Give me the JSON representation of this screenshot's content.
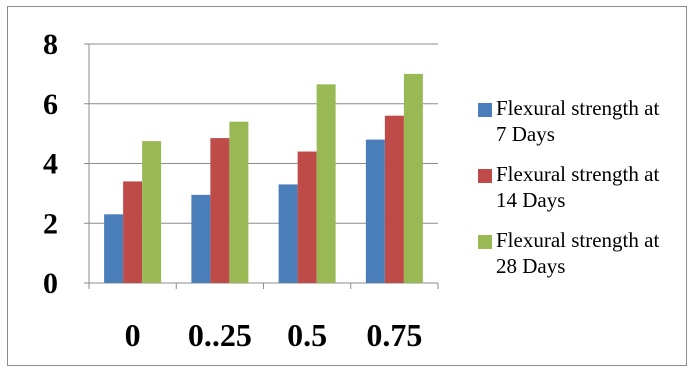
{
  "chart_data": {
    "type": "bar",
    "categories": [
      "0",
      "0..25",
      "0.5",
      "0.75"
    ],
    "series": [
      {
        "name": "Flexural strength at 7 Days",
        "color": "#4a7ebb",
        "values": [
          2.3,
          2.95,
          3.3,
          4.8
        ]
      },
      {
        "name": "Flexural strength at 14 Days",
        "color": "#be4b48",
        "values": [
          3.4,
          4.85,
          4.4,
          5.6
        ]
      },
      {
        "name": "Flexural strength at 28 Days",
        "color": "#98b954",
        "values": [
          4.75,
          5.4,
          6.65,
          7.0
        ]
      }
    ],
    "yticks": [
      "0",
      "2",
      "4",
      "6",
      "8"
    ],
    "ylim": [
      0,
      8
    ],
    "grid": true,
    "legend": "right",
    "title": "",
    "xlabel": "",
    "ylabel": ""
  }
}
